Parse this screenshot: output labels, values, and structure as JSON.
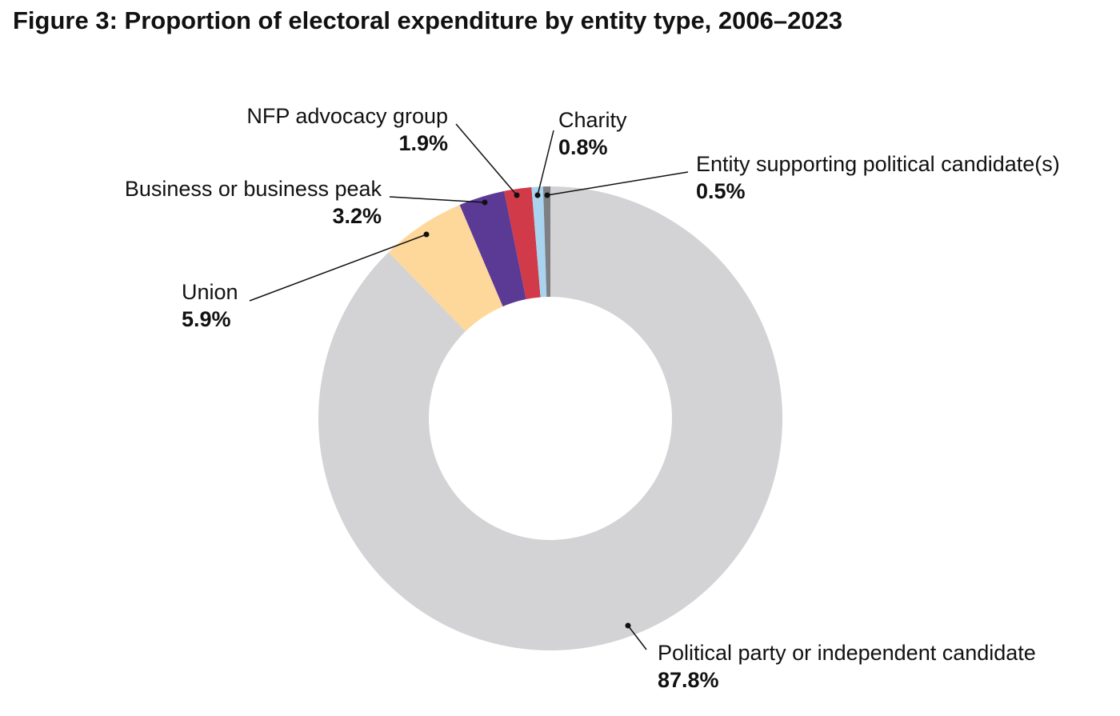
{
  "chart_data": {
    "type": "donut",
    "title": "Figure 3: Proportion of electoral expenditure by entity type, 2006–2023",
    "categories": [
      "Political party or independent candidate",
      "Union",
      "Business or business peak",
      "NFP advocacy group",
      "Charity",
      "Entity supporting political candidate(s)"
    ],
    "values": [
      87.8,
      5.9,
      3.2,
      1.9,
      0.8,
      0.5
    ],
    "value_labels": [
      "87.8%",
      "5.9%",
      "3.2%",
      "1.9%",
      "0.8%",
      "0.5%"
    ],
    "colors": [
      "#d3d3d5",
      "#fdd89a",
      "#5b3a96",
      "#d13a48",
      "#a9d4f0",
      "#7d7f82"
    ]
  }
}
